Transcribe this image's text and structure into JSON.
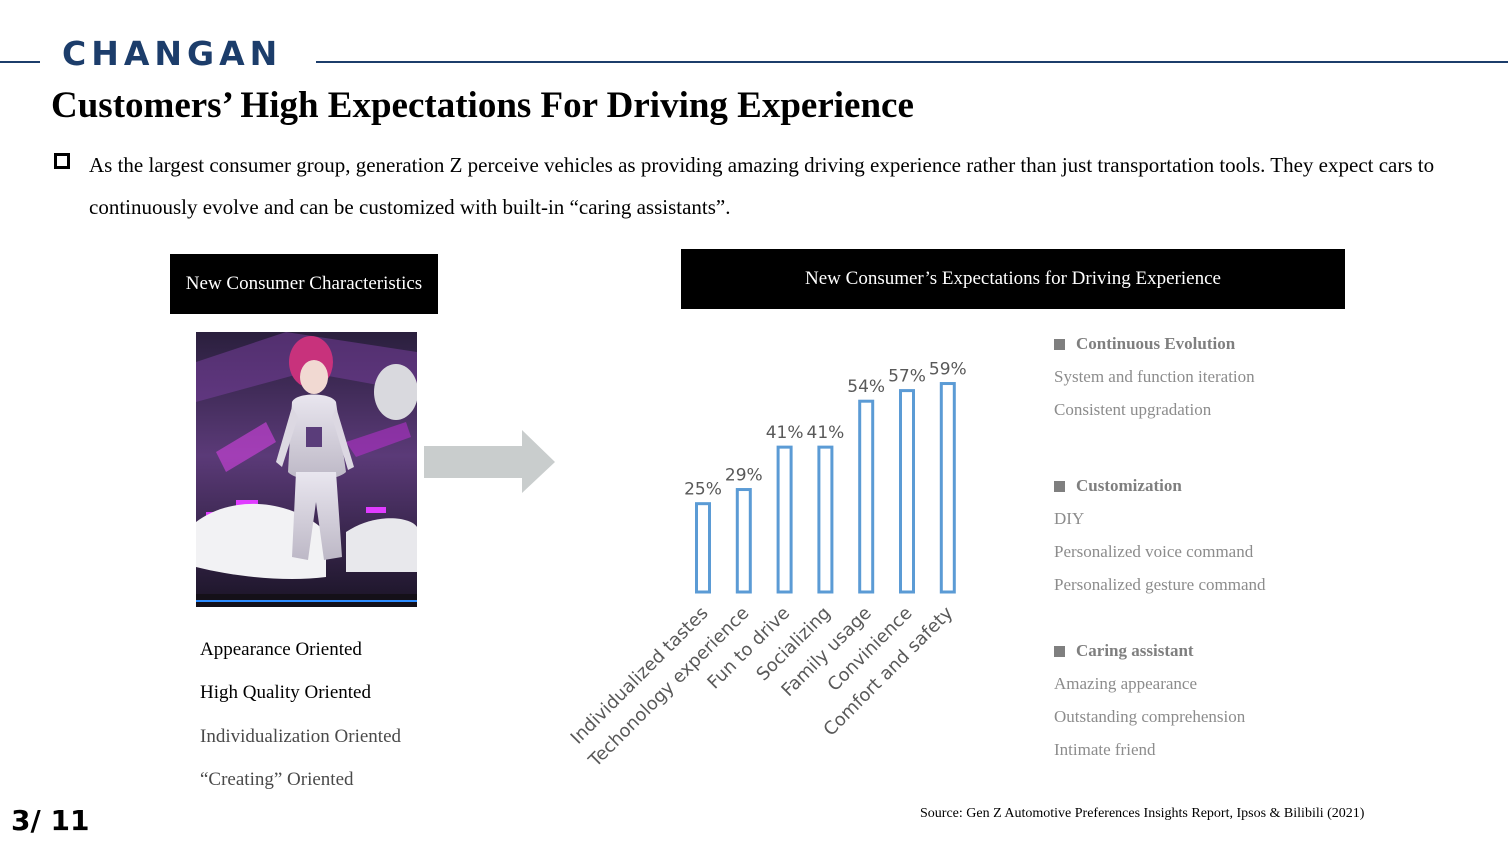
{
  "header": {
    "logo_text": "CHANGAN",
    "title": "Customers’ High Expectations For Driving Experience",
    "intro": "As the largest consumer group, generation Z perceive vehicles as providing amazing driving experience rather than just transportation tools. They expect cars to continuously evolve and can be customized with built-in “caring assistants”."
  },
  "left_panel": {
    "badge": "New Consumer Characteristics",
    "characteristics": [
      "Appearance Oriented",
      "High Quality Oriented",
      "Individualization Oriented",
      "“Creating” Oriented"
    ]
  },
  "right_panel": {
    "badge": "New Consumer’s Expectations for Driving Experience",
    "categories": [
      {
        "heading": "Continuous Evolution",
        "items": [
          "System and function iteration",
          "Consistent upgradation"
        ]
      },
      {
        "heading": "Customization",
        "items": [
          "DIY",
          "Personalized voice command",
          "Personalized gesture command"
        ]
      },
      {
        "heading": "Caring assistant",
        "items": [
          "Amazing appearance",
          "Outstanding comprehension",
          "Intimate friend"
        ]
      }
    ]
  },
  "chart_data": {
    "type": "bar",
    "categories": [
      "Individualized tastes",
      "Techonology experience",
      "Fun to drive",
      "Socializing",
      "Family usage",
      "Convinience",
      "Comfort and safety"
    ],
    "values": [
      25,
      29,
      41,
      41,
      54,
      57,
      59
    ],
    "data_labels": [
      "25%",
      "29%",
      "41%",
      "41%",
      "54%",
      "57%",
      "59%"
    ],
    "ylim": [
      0,
      60
    ],
    "grid": false,
    "bar_style": "outline",
    "bar_color": "#5b9bd5"
  },
  "footer": {
    "page_number": "3/ 11",
    "source": "Source: Gen Z Automotive Preferences Insights Report, Ipsos & Bilibili (2021)"
  },
  "colors": {
    "brand": "#1c3d6b",
    "badge_bg": "#000000",
    "muted_text": "#7f7f7f",
    "arrow": "#c9cdcd"
  },
  "icons": {
    "bullet": "hollow-square-icon",
    "arrow": "right-arrow-icon",
    "category_marker": "filled-square-icon"
  }
}
